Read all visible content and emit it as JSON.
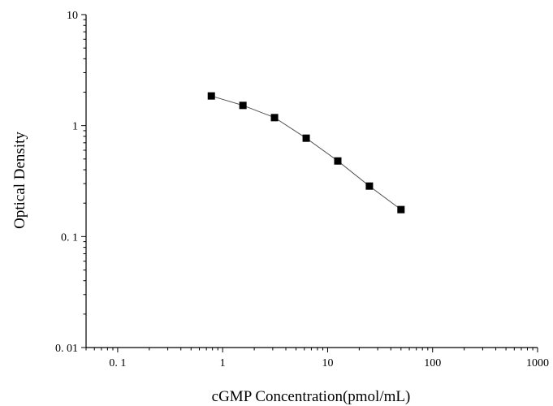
{
  "chart_data": {
    "type": "scatter",
    "title": "",
    "xlabel": "cGMP Concentration(pmol/mL)",
    "ylabel": "Optical Density",
    "xscale": "log",
    "yscale": "log",
    "xlim": [
      0.05,
      1000
    ],
    "ylim": [
      0.01,
      10
    ],
    "x_ticks": [
      0.1,
      1,
      10,
      100,
      1000
    ],
    "x_tick_labels": [
      "0. 1",
      "1",
      "10",
      "100",
      "1000"
    ],
    "y_ticks": [
      0.01,
      0.1,
      1,
      10
    ],
    "y_tick_labels": [
      "0. 01",
      "0. 1",
      "1",
      "10"
    ],
    "grid": false,
    "legend": "none",
    "series": [
      {
        "marker": "square",
        "line": true,
        "color": "#000000",
        "line_color": "#555555",
        "x": [
          0.78,
          1.56,
          3.12,
          6.25,
          12.5,
          25,
          50
        ],
        "y": [
          1.85,
          1.52,
          1.18,
          0.77,
          0.48,
          0.285,
          0.175
        ]
      }
    ]
  }
}
